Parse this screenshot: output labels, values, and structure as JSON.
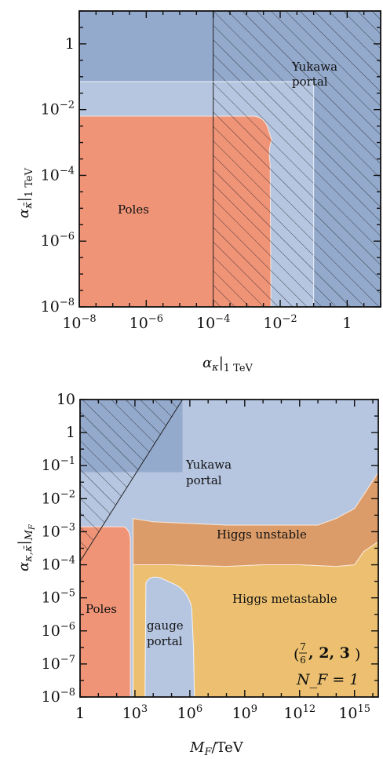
{
  "colors": {
    "dark_blue": "#94aacd",
    "light_blue": "#b6c6e1",
    "red": "#f09478",
    "orange": "#dc9c69",
    "yellow": "#ecc070",
    "hatch": "#222222"
  },
  "chart_data": [
    {
      "type": "region-map",
      "xlabel": "αₖ|₁ TeV",
      "ylabel": "α_κ̄|₁ TeV",
      "xscale": "log",
      "yscale": "log",
      "xlim_log10": [
        -8,
        1
      ],
      "ylim_log10": [
        -8,
        1
      ],
      "xticks": [
        {
          "log": -8,
          "label_base": "10",
          "label_exp": "−8"
        },
        {
          "log": -6,
          "label_base": "10",
          "label_exp": "−6"
        },
        {
          "log": -4,
          "label_base": "10",
          "label_exp": "−4"
        },
        {
          "log": -2,
          "label_base": "10",
          "label_exp": "−2"
        },
        {
          "log": 0,
          "label_base": "1",
          "label_exp": ""
        }
      ],
      "yticks": [
        {
          "log": -8,
          "label_base": "10",
          "label_exp": "−8"
        },
        {
          "log": -6,
          "label_base": "10",
          "label_exp": "−6"
        },
        {
          "log": -4,
          "label_base": "10",
          "label_exp": "−4"
        },
        {
          "log": -2,
          "label_base": "10",
          "label_exp": "−2"
        },
        {
          "log": 0,
          "label_base": "1",
          "label_exp": ""
        }
      ],
      "regions": [
        {
          "name": "Yukawa portal",
          "color": "light_blue",
          "label": "Yukawa portal"
        },
        {
          "name": "strong coupling",
          "color": "dark_blue",
          "label": ""
        },
        {
          "name": "Poles",
          "color": "red",
          "label": "Poles"
        },
        {
          "name": "excluded (hatched)",
          "color": "hatch",
          "label": ""
        }
      ],
      "boundaries": {
        "dark_blue_above_y_log": -1.15,
        "dark_blue_right_of_x_log": -1.0,
        "red_below_y_log": -2.2,
        "red_left_of_x_log": -2.3,
        "hatch_right_of_x_log": -4.0
      },
      "labels": {
        "yukawa_line1": "Yukawa",
        "yukawa_line2": "portal",
        "poles": "Poles"
      }
    },
    {
      "type": "region-map",
      "xlabel": "M_F/TeV",
      "ylabel": "α_κ,κ̄|M_F",
      "xscale": "log",
      "yscale": "log",
      "xlim_log10": [
        0,
        16.3
      ],
      "ylim_log10": [
        -8,
        1
      ],
      "xticks": [
        {
          "log": 0,
          "label_base": "1",
          "label_exp": ""
        },
        {
          "log": 3,
          "label_base": "10",
          "label_exp": "3"
        },
        {
          "log": 6,
          "label_base": "10",
          "label_exp": "6"
        },
        {
          "log": 9,
          "label_base": "10",
          "label_exp": "9"
        },
        {
          "log": 12,
          "label_base": "10",
          "label_exp": "12"
        },
        {
          "log": 15,
          "label_base": "10",
          "label_exp": "15"
        }
      ],
      "yticks": [
        {
          "log": 1,
          "label_base": "10",
          "label_exp": ""
        },
        {
          "log": 0,
          "label_base": "1",
          "label_exp": ""
        },
        {
          "log": -1,
          "label_base": "10",
          "label_exp": "−1"
        },
        {
          "log": -2,
          "label_base": "10",
          "label_exp": "−2"
        },
        {
          "log": -3,
          "label_base": "10",
          "label_exp": "−3"
        },
        {
          "log": -4,
          "label_base": "10",
          "label_exp": "−4"
        },
        {
          "log": -5,
          "label_base": "10",
          "label_exp": "−5"
        },
        {
          "log": -6,
          "label_base": "10",
          "label_exp": "−6"
        },
        {
          "log": -7,
          "label_base": "10",
          "label_exp": "−7"
        },
        {
          "log": -8,
          "label_base": "10",
          "label_exp": "−8"
        }
      ],
      "regions": [
        {
          "name": "Yukawa portal",
          "color": "light_blue",
          "label": "Yukawa portal"
        },
        {
          "name": "strong coupling",
          "color": "dark_blue",
          "label": ""
        },
        {
          "name": "Higgs unstable",
          "color": "orange",
          "label": "Higgs unstable"
        },
        {
          "name": "Higgs metastable",
          "color": "yellow",
          "label": "Higgs metastable"
        },
        {
          "name": "Poles",
          "color": "red",
          "label": "Poles"
        },
        {
          "name": "gauge portal",
          "color": "light_blue",
          "label": "gauge portal"
        }
      ],
      "higgs_unstable_upper_boundary": [
        [
          2.9,
          -2.6
        ],
        [
          4,
          -2.7
        ],
        [
          6,
          -2.75
        ],
        [
          8,
          -2.8
        ],
        [
          10,
          -2.8
        ],
        [
          12,
          -2.8
        ],
        [
          13,
          -2.8
        ],
        [
          14,
          -2.6
        ],
        [
          15,
          -2.3
        ],
        [
          15.6,
          -1.8
        ],
        [
          16.3,
          -1.2
        ]
      ],
      "higgs_unstable_lower_boundary": [
        [
          2.9,
          -4.0
        ],
        [
          5,
          -4.0
        ],
        [
          8,
          -4.05
        ],
        [
          10,
          -4.0
        ],
        [
          12,
          -4.0
        ],
        [
          14,
          -4.05
        ],
        [
          15,
          -4.0
        ],
        [
          15.5,
          -3.6
        ],
        [
          16.3,
          -3.3
        ]
      ],
      "labels": {
        "yukawa_line1": "Yukawa",
        "yukawa_line2": "portal",
        "higgs_unstable": "Higgs unstable",
        "higgs_metastable": "Higgs metastable",
        "poles": "Poles",
        "gauge_line1": "gauge",
        "gauge_line2": "portal",
        "rep_frac_num": "7",
        "rep_frac_den": "6",
        "rep_rest": ", 2, 3",
        "nf": "N_F = 1"
      }
    }
  ]
}
